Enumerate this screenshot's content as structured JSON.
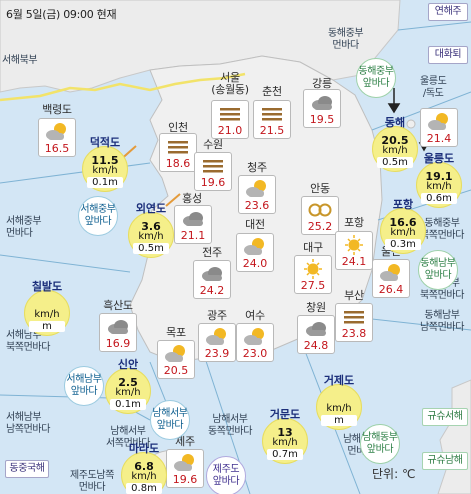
{
  "header": {
    "title": "6월 5일(금) 09:00 현재"
  },
  "unit_label": "단위: ℃",
  "seas": [
    {
      "id": "seohae-bukbu",
      "label": "서해북부"
    },
    {
      "id": "seohae-jungbu-bada",
      "label": "서해중부\n먼바다"
    },
    {
      "id": "seohae-nambu-bukjjok",
      "label": "서해남부\n북쪽먼바다"
    },
    {
      "id": "seohae-nambu-namjjok",
      "label": "서해남부\n남쪽먼바다"
    },
    {
      "id": "donghae-jungbu",
      "label": "동해중부\n먼바다"
    },
    {
      "id": "donghae-jungbu-bukjjok",
      "label": "동해중부\n북쪽먼바다"
    },
    {
      "id": "donghae-nambu-bukjjok",
      "label": "동해남부\n북쪽먼바다"
    },
    {
      "id": "donghae-nambu-namjjok",
      "label": "동해남부\n남쪽먼바다"
    },
    {
      "id": "namhae-seobu-seojjok",
      "label": "남해서부\n서쪽먼바다"
    },
    {
      "id": "namhae-seobu-dongjjok",
      "label": "남해서부\n동쪽먼바다"
    },
    {
      "id": "namhae-dongbu",
      "label": "남해동부\n먼바다"
    },
    {
      "id": "jejudo-namjjok",
      "label": "제주도남쪽\n먼바다"
    },
    {
      "id": "ulleung-dokdo",
      "label": "울릉도\n/독도"
    }
  ],
  "cities": [
    {
      "name": "서울\n(송월동)",
      "temp": "21.0",
      "icon": "fog"
    },
    {
      "name": "춘천",
      "temp": "21.5",
      "icon": "fog"
    },
    {
      "name": "강릉",
      "temp": "19.5",
      "icon": "cloudy"
    },
    {
      "name": "백령도",
      "temp": "16.5",
      "icon": "partly-cloudy"
    },
    {
      "name": "인천",
      "temp": "18.6",
      "icon": "fog"
    },
    {
      "name": "수원",
      "temp": "19.6",
      "icon": "fog"
    },
    {
      "name": "청주",
      "temp": "23.6",
      "icon": "partly-cloudy"
    },
    {
      "name": "홍성",
      "temp": "21.1",
      "icon": "cloudy"
    },
    {
      "name": "안동",
      "temp": "25.2",
      "icon": "yellow-dust"
    },
    {
      "name": "대전",
      "temp": "24.0",
      "icon": "partly-cloudy"
    },
    {
      "name": "포항",
      "temp": "24.1",
      "icon": "sunny"
    },
    {
      "name": "전주",
      "temp": "24.2",
      "icon": "cloudy"
    },
    {
      "name": "대구",
      "temp": "27.5",
      "icon": "sunny"
    },
    {
      "name": "울산",
      "temp": "26.4",
      "icon": "partly-cloudy"
    },
    {
      "name": "흑산도",
      "temp": "16.9",
      "icon": "cloudy"
    },
    {
      "name": "부산",
      "temp": "23.8",
      "icon": "fog"
    },
    {
      "name": "광주",
      "temp": "23.9",
      "icon": "partly-cloudy"
    },
    {
      "name": "여수",
      "temp": "23.0",
      "icon": "partly-cloudy"
    },
    {
      "name": "목포",
      "temp": "20.5",
      "icon": "partly-cloudy"
    },
    {
      "name": "창원",
      "temp": "24.8",
      "icon": "cloudy"
    },
    {
      "name": "제주",
      "temp": "19.6",
      "icon": "partly-cloudy"
    },
    {
      "name": "울릉도",
      "temp": "21.4",
      "icon": "partly-cloudy"
    }
  ],
  "buoys": [
    {
      "name": "덕적도",
      "wind": "11.5",
      "wind_unit": "km/h",
      "wave": "0.1m"
    },
    {
      "name": "외연도",
      "wind": "3.6",
      "wind_unit": "km/h",
      "wave": "0.5m"
    },
    {
      "name": "칠발도",
      "wind": "",
      "wind_unit": "km/h",
      "wave": "m"
    },
    {
      "name": "신안",
      "wind": "2.5",
      "wind_unit": "km/h",
      "wave": "0.1m"
    },
    {
      "name": "마라도",
      "wind": "6.8",
      "wind_unit": "km/h",
      "wave": "0.8m"
    },
    {
      "name": "거문도",
      "wind": "13",
      "wind_unit": "km/h",
      "wave": "0.7m"
    },
    {
      "name": "거제도",
      "wind": "",
      "wind_unit": "km/h",
      "wave": "m"
    },
    {
      "name": "동해",
      "wind": "20.5",
      "wind_unit": "km/h",
      "wave": "0.5m"
    },
    {
      "name": "울릉도",
      "wind": "19.1",
      "wind_unit": "km/h",
      "wave": "0.6m"
    },
    {
      "name": "포항",
      "wind": "16.6",
      "wind_unit": "km/h",
      "wave": "0.3m"
    }
  ],
  "zones": [
    {
      "label": "서해중부\n앞바다",
      "color": "blue"
    },
    {
      "label": "서해남부\n앞바다",
      "color": "blue"
    },
    {
      "label": "남해서부\n앞바다",
      "color": "blue"
    },
    {
      "label": "동해중부\n앞바다",
      "color": "green"
    },
    {
      "label": "동해남부\n앞바다",
      "color": "green"
    },
    {
      "label": "남해동부\n앞바다",
      "color": "green"
    },
    {
      "label": "제주도\n앞바다",
      "color": "purple"
    }
  ],
  "rect_labels": [
    {
      "label": "연해주",
      "color": "purple"
    },
    {
      "label": "대화퇴",
      "color": "purple"
    },
    {
      "label": "동중국해",
      "color": "purple"
    },
    {
      "label": "규슈서해",
      "color": "green"
    },
    {
      "label": "규슈남해",
      "color": "green"
    }
  ]
}
